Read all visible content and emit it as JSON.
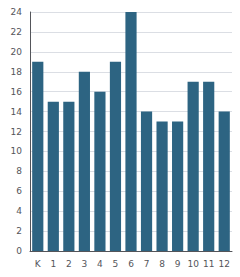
{
  "chart_data": {
    "type": "bar",
    "categories": [
      "K",
      "1",
      "2",
      "3",
      "4",
      "5",
      "6",
      "7",
      "8",
      "9",
      "10",
      "11",
      "12"
    ],
    "values": [
      19,
      15,
      15,
      18,
      16,
      19,
      24,
      14,
      13,
      13,
      17,
      17,
      14
    ],
    "color": "#2d6482",
    "ylim": [
      0,
      24
    ],
    "yticks": [
      0,
      2,
      4,
      6,
      8,
      10,
      12,
      14,
      16,
      18,
      20,
      22,
      24
    ],
    "grid": true
  }
}
